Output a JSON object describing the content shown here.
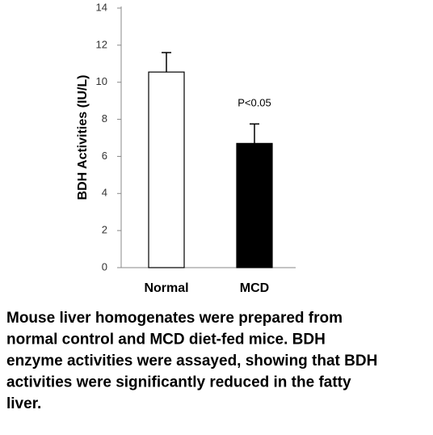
{
  "chart_data": {
    "type": "bar",
    "ylabel": "BDH  Activities (IU/L)",
    "categories": [
      "Normal",
      "MCD"
    ],
    "values": [
      10.55,
      6.7
    ],
    "errors": [
      1.05,
      1.05
    ],
    "colors": [
      "#ffffff",
      "#000000"
    ],
    "edge_color": "#000000",
    "ylim": [
      0,
      14
    ],
    "yticks": [
      0,
      2,
      4,
      6,
      8,
      10,
      12,
      14
    ],
    "grid": false,
    "annotation": "P<0.05",
    "caption": [
      "Mouse liver homogenates were prepared from",
      "normal control and MCD diet-fed mice. BDH",
      "enzyme activities were assayed, showing that BDH",
      "activities were significantly reduced in the fatty",
      "liver."
    ]
  }
}
